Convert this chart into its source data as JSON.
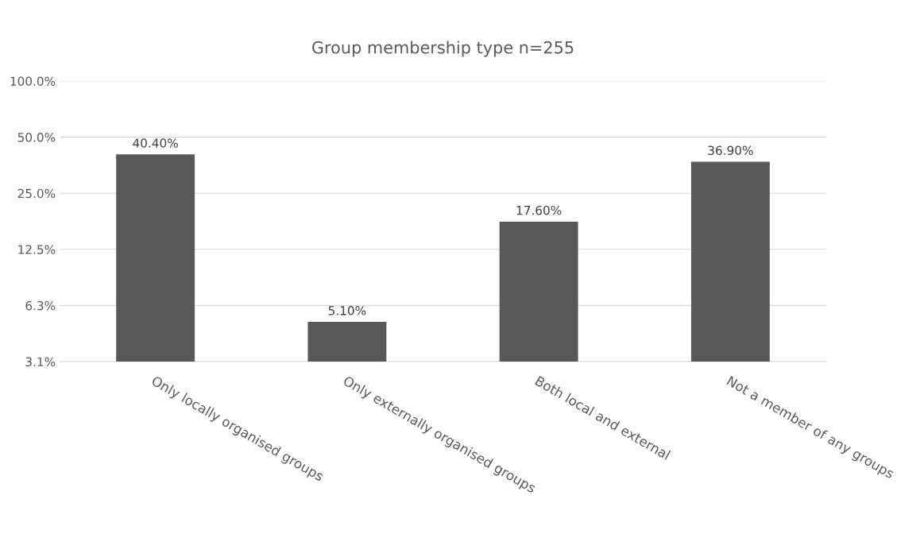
{
  "chart_data": {
    "type": "bar",
    "title": "Group membership type n=255",
    "categories": [
      "Only locally organised groups",
      "Only externally organised groups",
      "Both local and external",
      "Not a member of any groups"
    ],
    "values": [
      40.4,
      5.1,
      17.6,
      36.9
    ],
    "value_labels": [
      "40.40%",
      "5.10%",
      "17.60%",
      "36.90%"
    ],
    "color": "#595959",
    "log": true,
    "ylim": [
      3.125,
      100
    ],
    "yticks": [
      {
        "value": 3.125,
        "label": "3.1%"
      },
      {
        "value": 6.25,
        "label": "6.3%"
      },
      {
        "value": 12.5,
        "label": "12.5%"
      },
      {
        "value": 25,
        "label": "25.0%"
      },
      {
        "value": 50,
        "label": "50.0%"
      },
      {
        "value": 100,
        "label": "100.0%"
      }
    ],
    "grid": "y",
    "legend": false
  }
}
